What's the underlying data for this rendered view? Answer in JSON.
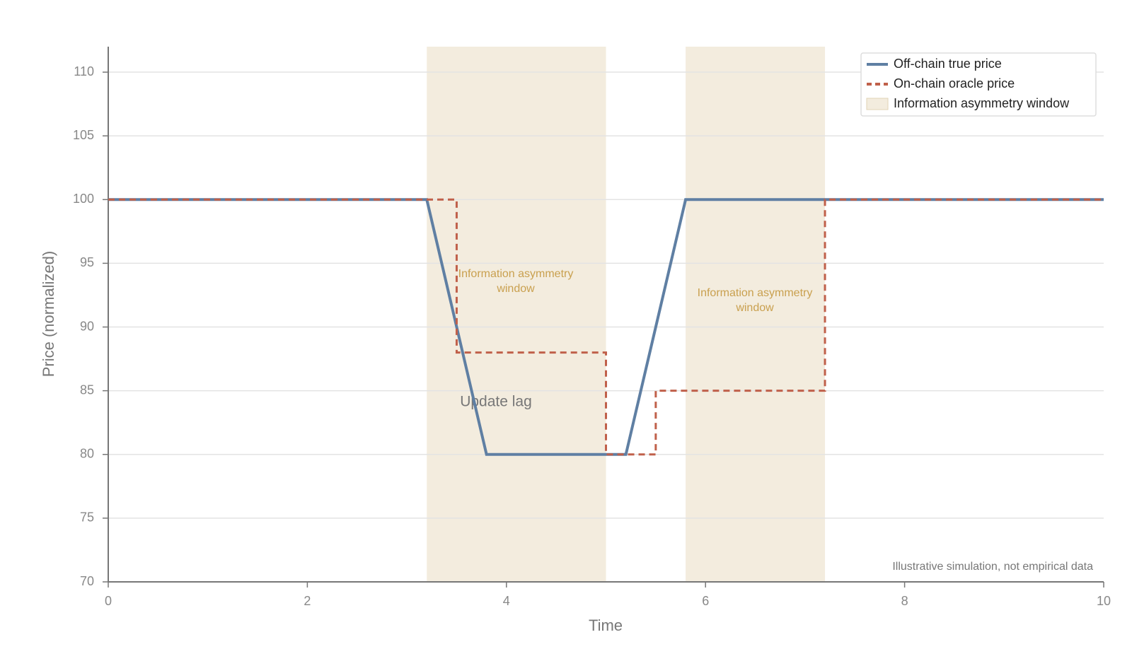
{
  "chart_data": {
    "type": "line",
    "xlabel": "Time",
    "ylabel": "Price (normalized)",
    "xlim": [
      0,
      10
    ],
    "xticks": [
      0,
      2,
      4,
      6,
      8,
      10
    ],
    "ylim": [
      70,
      112
    ],
    "yticks": [
      70,
      75,
      80,
      85,
      90,
      95,
      100,
      105,
      110
    ],
    "grid": true,
    "legend": "upper right",
    "series": [
      {
        "name": "Off-chain true price",
        "color": "#5f7fa3",
        "style": "solid",
        "x": [
          0,
          3.2,
          3.8,
          5.2,
          5.8,
          10
        ],
        "values": [
          100,
          100,
          80,
          80,
          100,
          100
        ]
      },
      {
        "name": "On-chain oracle price",
        "color": "#c0604a",
        "style": "dashed",
        "x": [
          0,
          3.5,
          3.5,
          5.0,
          5.0,
          5.5,
          5.5,
          7.2,
          7.2,
          10
        ],
        "values": [
          100,
          100,
          88,
          88,
          80,
          80,
          85,
          85,
          100,
          100
        ]
      }
    ],
    "shading": {
      "name": "Information asymmetry window",
      "color": "#f3ecde",
      "regions": [
        [
          3.2,
          5.0
        ],
        [
          5.8,
          7.2
        ]
      ]
    },
    "annotations": [
      {
        "lines": [
          "Information asymmetry",
          "window"
        ]
      },
      {
        "lines": [
          "Information asymmetry",
          "window"
        ]
      },
      {
        "lines": [
          "Update lag"
        ]
      }
    ],
    "footnote": "Illustrative simulation, not empirical data"
  }
}
